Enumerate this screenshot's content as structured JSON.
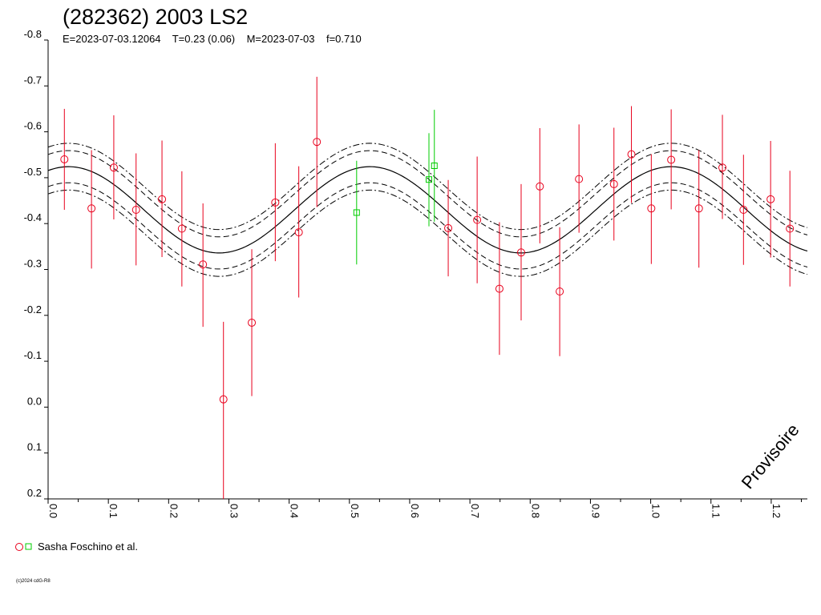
{
  "chart_data": {
    "type": "scatter",
    "title": "(282362) 2003 LS2",
    "subtitle": "E=2023-07-03.12064    T=0.23 (0.06)    M=2023-07-03    f=0.710",
    "watermark": "Provisoire",
    "copyright": "(c)2024 cdG-R8",
    "xlim": [
      0,
      1.26
    ],
    "ylim": [
      0.2,
      -0.8
    ],
    "x_ticks": [
      {
        "value": 0.0,
        "label": "0.0"
      },
      {
        "value": 0.1,
        "label": "0.1"
      },
      {
        "value": 0.2,
        "label": "0.2"
      },
      {
        "value": 0.3,
        "label": "0.3"
      },
      {
        "value": 0.4,
        "label": "0.4"
      },
      {
        "value": 0.5,
        "label": "0.5"
      },
      {
        "value": 0.6,
        "label": "0.6"
      },
      {
        "value": 0.7,
        "label": "0.7"
      },
      {
        "value": 0.8,
        "label": "0.8"
      },
      {
        "value": 0.9,
        "label": "0.9"
      },
      {
        "value": 1.0,
        "label": "1.0"
      },
      {
        "value": 1.1,
        "label": "1.1"
      },
      {
        "value": 1.2,
        "label": "1.2"
      }
    ],
    "y_ticks": [
      {
        "value": -0.8,
        "label": "-0.8"
      },
      {
        "value": -0.7,
        "label": "-0.7"
      },
      {
        "value": -0.6,
        "label": "-0.6"
      },
      {
        "value": -0.5,
        "label": "-0.5"
      },
      {
        "value": -0.4,
        "label": "-0.4"
      },
      {
        "value": -0.3,
        "label": "-0.3"
      },
      {
        "value": -0.2,
        "label": "-0.2"
      },
      {
        "value": -0.1,
        "label": "-0.1"
      },
      {
        "value": 0.0,
        "label": "0.0"
      },
      {
        "value": 0.1,
        "label": "0.1"
      },
      {
        "value": 0.2,
        "label": "0.2"
      }
    ],
    "fit": {
      "mean": -0.43,
      "amplitude": 0.094,
      "peak_phase": 0.034,
      "period_phase": 0.5,
      "envelopes": [
        {
          "offset": -0.035,
          "style": "dashed"
        },
        {
          "offset": 0.035,
          "style": "dashed"
        },
        {
          "offset": -0.051,
          "style": "dashdot"
        },
        {
          "offset": 0.051,
          "style": "dashdot"
        }
      ]
    },
    "legend": {
      "label": "Sasha Foschino et al.",
      "placement": "bottom-left"
    },
    "series": [
      {
        "name": "Sasha Foschino et al.",
        "marker": "circle",
        "color": "#e8001c",
        "points": [
          {
            "x": 0.027,
            "y": -0.54,
            "lo": -0.65,
            "hi": -0.43
          },
          {
            "x": 0.072,
            "y": -0.433,
            "lo": -0.56,
            "hi": -0.302
          },
          {
            "x": 0.109,
            "y": -0.522,
            "lo": -0.636,
            "hi": -0.409
          },
          {
            "x": 0.146,
            "y": -0.43,
            "lo": -0.553,
            "hi": -0.309
          },
          {
            "x": 0.189,
            "y": -0.453,
            "lo": -0.581,
            "hi": -0.327
          },
          {
            "x": 0.222,
            "y": -0.389,
            "lo": -0.514,
            "hi": -0.263
          },
          {
            "x": 0.257,
            "y": -0.311,
            "lo": -0.444,
            "hi": -0.175
          },
          {
            "x": 0.291,
            "y": -0.017,
            "lo": -0.186,
            "hi": 0.2
          },
          {
            "x": 0.338,
            "y": -0.184,
            "lo": -0.344,
            "hi": -0.024
          },
          {
            "x": 0.377,
            "y": -0.446,
            "lo": -0.575,
            "hi": -0.318
          },
          {
            "x": 0.416,
            "y": -0.381,
            "lo": -0.525,
            "hi": -0.239
          },
          {
            "x": 0.446,
            "y": -0.578,
            "lo": -0.72,
            "hi": -0.436
          },
          {
            "x": 0.664,
            "y": -0.39,
            "lo": -0.495,
            "hi": -0.285
          },
          {
            "x": 0.712,
            "y": -0.408,
            "lo": -0.546,
            "hi": -0.27
          },
          {
            "x": 0.749,
            "y": -0.258,
            "lo": -0.403,
            "hi": -0.114
          },
          {
            "x": 0.785,
            "y": -0.337,
            "lo": -0.486,
            "hi": -0.189
          },
          {
            "x": 0.816,
            "y": -0.481,
            "lo": -0.608,
            "hi": -0.357
          },
          {
            "x": 0.849,
            "y": -0.252,
            "lo": -0.392,
            "hi": -0.111
          },
          {
            "x": 0.881,
            "y": -0.497,
            "lo": -0.616,
            "hi": -0.38
          },
          {
            "x": 0.939,
            "y": -0.486,
            "lo": -0.609,
            "hi": -0.363
          },
          {
            "x": 0.968,
            "y": -0.551,
            "lo": -0.656,
            "hi": -0.445
          },
          {
            "x": 1.001,
            "y": -0.433,
            "lo": -0.551,
            "hi": -0.312
          },
          {
            "x": 1.034,
            "y": -0.539,
            "lo": -0.649,
            "hi": -0.431
          },
          {
            "x": 1.08,
            "y": -0.433,
            "lo": -0.56,
            "hi": -0.304
          },
          {
            "x": 1.119,
            "y": -0.522,
            "lo": -0.637,
            "hi": -0.41
          },
          {
            "x": 1.154,
            "y": -0.43,
            "lo": -0.55,
            "hi": -0.31
          },
          {
            "x": 1.199,
            "y": -0.453,
            "lo": -0.58,
            "hi": -0.326
          },
          {
            "x": 1.231,
            "y": -0.389,
            "lo": -0.515,
            "hi": -0.263
          }
        ]
      },
      {
        "name": "Sasha Foschino et al.",
        "marker": "square",
        "color": "#00cc00",
        "points": [
          {
            "x": 0.512,
            "y": -0.424,
            "lo": -0.537,
            "hi": -0.311
          },
          {
            "x": 0.632,
            "y": -0.496,
            "lo": -0.597,
            "hi": -0.394
          },
          {
            "x": 0.641,
            "y": -0.526,
            "lo": -0.648,
            "hi": -0.404
          }
        ]
      }
    ]
  }
}
